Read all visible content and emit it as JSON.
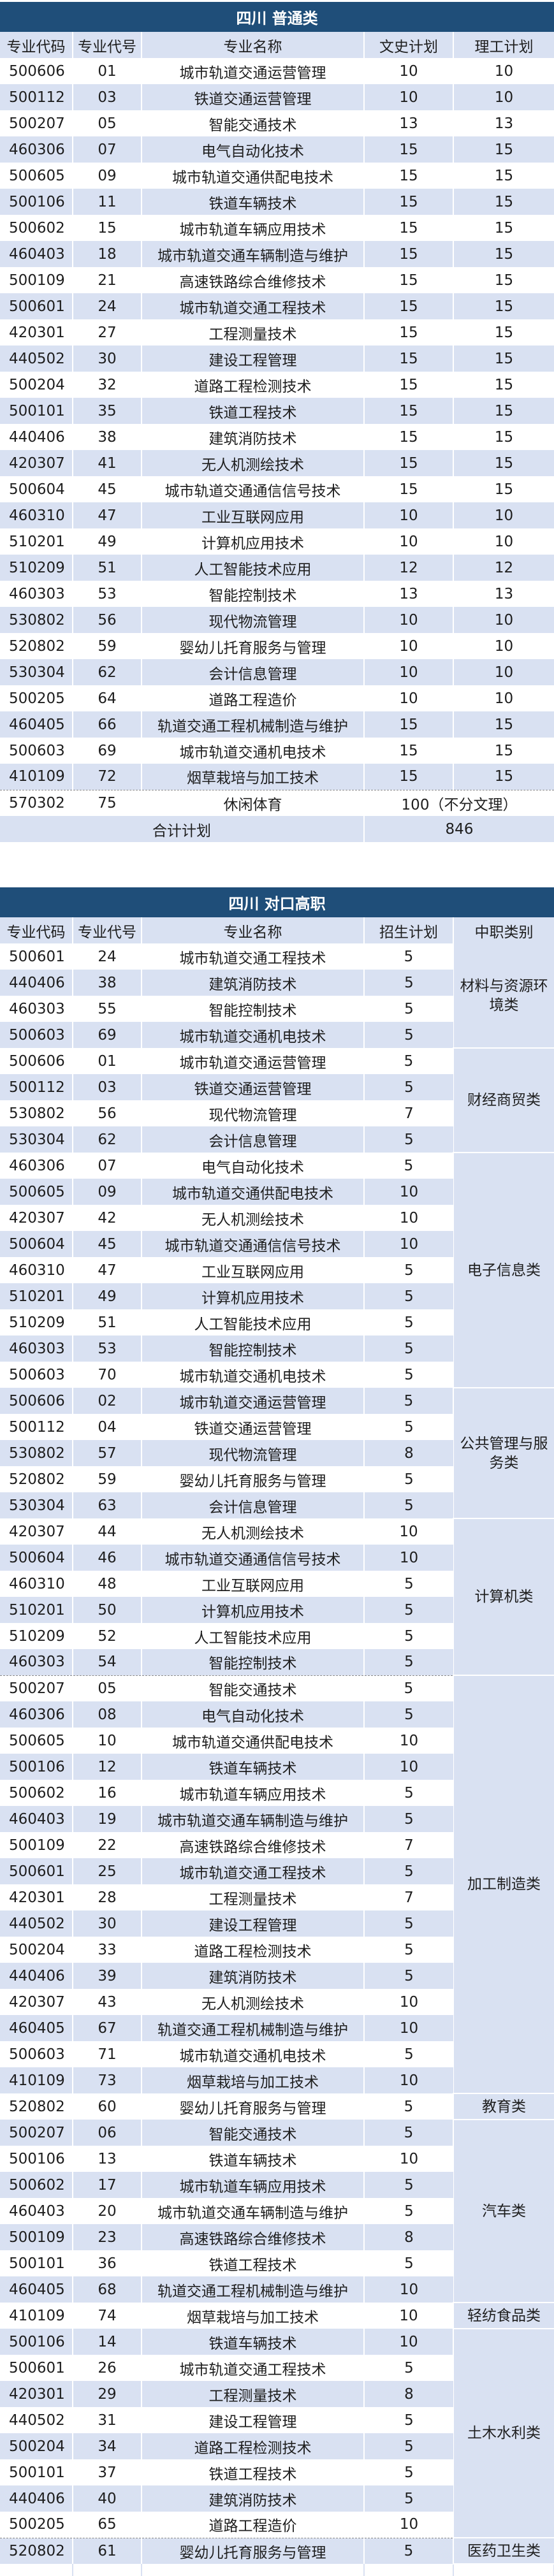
{
  "colors": {
    "title_bg": "#1f4e79",
    "stripe": "#d9e1f2"
  },
  "general": {
    "title": "四川 普通类",
    "headers": [
      "专业代码",
      "专业代号",
      "专业名称",
      "文史计划",
      "理工计划"
    ],
    "rows": [
      [
        "500606",
        "01",
        "城市轨道交通运营管理",
        "10",
        "10"
      ],
      [
        "500112",
        "03",
        "铁道交通运营管理",
        "10",
        "10"
      ],
      [
        "500207",
        "05",
        "智能交通技术",
        "13",
        "13"
      ],
      [
        "460306",
        "07",
        "电气自动化技术",
        "15",
        "15"
      ],
      [
        "500605",
        "09",
        "城市轨道交通供配电技术",
        "15",
        "15"
      ],
      [
        "500106",
        "11",
        "铁道车辆技术",
        "15",
        "15"
      ],
      [
        "500602",
        "15",
        "城市轨道车辆应用技术",
        "15",
        "15"
      ],
      [
        "460403",
        "18",
        "城市轨道交通车辆制造与维护",
        "15",
        "15"
      ],
      [
        "500109",
        "21",
        "高速铁路综合维修技术",
        "15",
        "15"
      ],
      [
        "500601",
        "24",
        "城市轨道交通工程技术",
        "15",
        "15"
      ],
      [
        "420301",
        "27",
        "工程测量技术",
        "15",
        "15"
      ],
      [
        "440502",
        "30",
        "建设工程管理",
        "15",
        "15"
      ],
      [
        "500204",
        "32",
        "道路工程检测技术",
        "15",
        "15"
      ],
      [
        "500101",
        "35",
        "铁道工程技术",
        "15",
        "15"
      ],
      [
        "440406",
        "38",
        "建筑消防技术",
        "15",
        "15"
      ],
      [
        "420307",
        "41",
        "无人机测绘技术",
        "15",
        "15"
      ],
      [
        "500604",
        "45",
        "城市轨道交通通信信号技术",
        "15",
        "15"
      ],
      [
        "460310",
        "47",
        "工业互联网应用",
        "10",
        "10"
      ],
      [
        "510201",
        "49",
        "计算机应用技术",
        "10",
        "10"
      ],
      [
        "510209",
        "51",
        "人工智能技术应用",
        "12",
        "12"
      ],
      [
        "460303",
        "53",
        "智能控制技术",
        "13",
        "13"
      ],
      [
        "530802",
        "56",
        "现代物流管理",
        "10",
        "10"
      ],
      [
        "520802",
        "59",
        "婴幼儿托育服务与管理",
        "10",
        "10"
      ],
      [
        "530304",
        "62",
        "会计信息管理",
        "10",
        "10"
      ],
      [
        "500205",
        "64",
        "道路工程造价",
        "10",
        "10"
      ],
      [
        "460405",
        "66",
        "轨道交通工程机械制造与维护",
        "15",
        "15"
      ],
      [
        "500603",
        "69",
        "城市轨道交通机电技术",
        "15",
        "15"
      ],
      [
        "410109",
        "72",
        "烟草栽培与加工技术",
        "15",
        "15"
      ]
    ],
    "special_row": {
      "code": "570302",
      "num": "75",
      "name": "休闲体育",
      "plan": "100（不分文理）"
    },
    "total": {
      "label": "合计计划",
      "value": "846"
    }
  },
  "vocational": {
    "title": "四川 对口高职",
    "headers": [
      "专业代码",
      "专业代号",
      "专业名称",
      "招生计划",
      "中职类别"
    ],
    "groups": [
      {
        "category": "材料与资源环境类",
        "rows": [
          [
            "500601",
            "24",
            "城市轨道交通工程技术",
            "5"
          ],
          [
            "440406",
            "38",
            "建筑消防技术",
            "5"
          ],
          [
            "460303",
            "55",
            "智能控制技术",
            "5"
          ],
          [
            "500603",
            "69",
            "城市轨道交通机电技术",
            "5"
          ]
        ]
      },
      {
        "category": "财经商贸类",
        "rows": [
          [
            "500606",
            "01",
            "城市轨道交通运营管理",
            "5"
          ],
          [
            "500112",
            "03",
            "铁道交通运营管理",
            "5"
          ],
          [
            "530802",
            "56",
            "现代物流管理",
            "7"
          ],
          [
            "530304",
            "62",
            "会计信息管理",
            "5"
          ]
        ]
      },
      {
        "category": "电子信息类",
        "rows": [
          [
            "460306",
            "07",
            "电气自动化技术",
            "5"
          ],
          [
            "500605",
            "09",
            "城市轨道交通供配电技术",
            "10"
          ],
          [
            "420307",
            "42",
            "无人机测绘技术",
            "10"
          ],
          [
            "500604",
            "45",
            "城市轨道交通通信信号技术",
            "10"
          ],
          [
            "460310",
            "47",
            "工业互联网应用",
            "5"
          ],
          [
            "510201",
            "49",
            "计算机应用技术",
            "5"
          ],
          [
            "510209",
            "51",
            "人工智能技术应用",
            "5"
          ],
          [
            "460303",
            "53",
            "智能控制技术",
            "5"
          ],
          [
            "500603",
            "70",
            "城市轨道交通机电技术",
            "5"
          ]
        ]
      },
      {
        "category": "公共管理与服务类",
        "rows": [
          [
            "500606",
            "02",
            "城市轨道交通运营管理",
            "5"
          ],
          [
            "500112",
            "04",
            "铁道交通运营管理",
            "5"
          ],
          [
            "530802",
            "57",
            "现代物流管理",
            "8"
          ],
          [
            "520802",
            "59",
            "婴幼儿托育服务与管理",
            "5"
          ],
          [
            "530304",
            "63",
            "会计信息管理",
            "5"
          ]
        ]
      },
      {
        "category": "计算机类",
        "rows": [
          [
            "420307",
            "44",
            "无人机测绘技术",
            "10"
          ],
          [
            "500604",
            "46",
            "城市轨道交通通信信号技术",
            "10"
          ],
          [
            "460310",
            "48",
            "工业互联网应用",
            "5"
          ],
          [
            "510201",
            "50",
            "计算机应用技术",
            "5"
          ],
          [
            "510209",
            "52",
            "人工智能技术应用",
            "5"
          ],
          [
            "460303",
            "54",
            "智能控制技术",
            "5"
          ]
        ]
      },
      {
        "category": "加工制造类",
        "rows": [
          [
            "500207",
            "05",
            "智能交通技术",
            "5"
          ],
          [
            "460306",
            "08",
            "电气自动化技术",
            "5"
          ],
          [
            "500605",
            "10",
            "城市轨道交通供配电技术",
            "10"
          ],
          [
            "500106",
            "12",
            "铁道车辆技术",
            "10"
          ],
          [
            "500602",
            "16",
            "城市轨道车辆应用技术",
            "5"
          ],
          [
            "460403",
            "19",
            "城市轨道交通车辆制造与维护",
            "5"
          ],
          [
            "500109",
            "22",
            "高速铁路综合维修技术",
            "7"
          ],
          [
            "500601",
            "25",
            "城市轨道交通工程技术",
            "5"
          ],
          [
            "420301",
            "28",
            "工程测量技术",
            "7"
          ],
          [
            "440502",
            "30",
            "建设工程管理",
            "5"
          ],
          [
            "500204",
            "33",
            "道路工程检测技术",
            "5"
          ],
          [
            "440406",
            "39",
            "建筑消防技术",
            "5"
          ],
          [
            "420307",
            "43",
            "无人机测绘技术",
            "10"
          ],
          [
            "460405",
            "67",
            "轨道交通工程机械制造与维护",
            "10"
          ],
          [
            "500603",
            "71",
            "城市轨道交通机电技术",
            "5"
          ],
          [
            "410109",
            "73",
            "烟草栽培与加工技术",
            "10"
          ]
        ]
      },
      {
        "category": "教育类",
        "rows": [
          [
            "520802",
            "60",
            "婴幼儿托育服务与管理",
            "5"
          ]
        ]
      },
      {
        "category": "汽车类",
        "rows": [
          [
            "500207",
            "06",
            "智能交通技术",
            "5"
          ],
          [
            "500106",
            "13",
            "铁道车辆技术",
            "10"
          ],
          [
            "500602",
            "17",
            "城市轨道车辆应用技术",
            "5"
          ],
          [
            "460403",
            "20",
            "城市轨道交通车辆制造与维护",
            "5"
          ],
          [
            "500109",
            "23",
            "高速铁路综合维修技术",
            "8"
          ],
          [
            "500101",
            "36",
            "铁道工程技术",
            "5"
          ],
          [
            "460405",
            "68",
            "轨道交通工程机械制造与维护",
            "10"
          ]
        ]
      },
      {
        "category": "轻纺食品类",
        "rows": [
          [
            "410109",
            "74",
            "烟草栽培与加工技术",
            "10"
          ]
        ]
      },
      {
        "category": "土木水利类",
        "rows": [
          [
            "500106",
            "14",
            "铁道车辆技术",
            "10"
          ],
          [
            "500601",
            "26",
            "城市轨道交通工程技术",
            "5"
          ],
          [
            "420301",
            "29",
            "工程测量技术",
            "8"
          ],
          [
            "440502",
            "31",
            "建设工程管理",
            "5"
          ],
          [
            "500204",
            "34",
            "道路工程检测技术",
            "5"
          ],
          [
            "500101",
            "37",
            "铁道工程技术",
            "5"
          ],
          [
            "440406",
            "40",
            "建筑消防技术",
            "5"
          ],
          [
            "500205",
            "65",
            "道路工程造价",
            "10"
          ]
        ]
      },
      {
        "category": "医药卫生类",
        "rows": [
          [
            "520802",
            "61",
            "婴幼儿托育服务与管理",
            "5"
          ]
        ]
      }
    ]
  }
}
